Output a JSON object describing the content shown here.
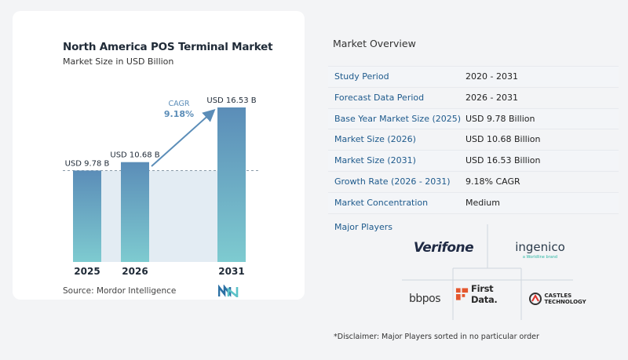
{
  "chart_data": {
    "type": "bar",
    "title": "North America POS Terminal Market",
    "subtitle": "Market Size in USD Billion",
    "categories": [
      "2025",
      "2026",
      "2031"
    ],
    "values": [
      9.78,
      10.68,
      16.53
    ],
    "data_labels": [
      "USD 9.78 B",
      "USD 10.68 B",
      "USD 16.53 B"
    ],
    "cagr_label": "CAGR",
    "cagr_value": "9.18%",
    "xlabel": "",
    "ylabel": "",
    "ylim": [
      0,
      16.53
    ],
    "grid": false,
    "bar_color_top": "#5b8db8",
    "bar_color_bottom": "#7ecbd0"
  },
  "source": "Source:  Mordor Intelligence",
  "overview": {
    "title": "Market Overview",
    "rows": [
      {
        "label": "Study Period",
        "value": "2020 - 2031"
      },
      {
        "label": "Forecast Data Period",
        "value": "2026 - 2031"
      },
      {
        "label": "Base Year Market Size (2025)",
        "value": "USD 9.78 Billion"
      },
      {
        "label": "Market Size (2026)",
        "value": "USD 10.68 Billion"
      },
      {
        "label": "Market Size (2031)",
        "value": "USD 16.53 Billion"
      },
      {
        "label": "Growth Rate (2026 - 2031)",
        "value": "9.18% CAGR"
      },
      {
        "label": "Market Concentration",
        "value": "Medium"
      }
    ]
  },
  "players": {
    "title": "Major Players",
    "logos": [
      "Verifone",
      "ingenico",
      "bbpos",
      "First Data.",
      "CASTLES TECHNOLOGY"
    ],
    "ingenico_tagline": "a Worldline brand"
  },
  "disclaimer": "*Disclaimer: Major Players sorted in no particular order",
  "colors": {
    "accent": "#1e5a8c",
    "bar_top": "#5b8db8",
    "bar_bottom": "#7ecbd0"
  }
}
